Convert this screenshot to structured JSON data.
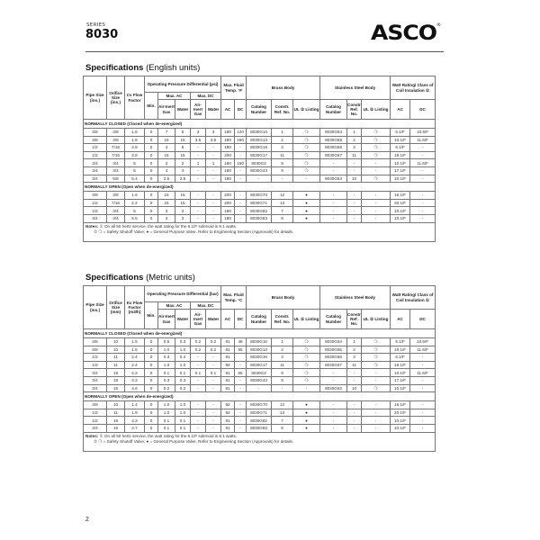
{
  "header": {
    "series_label": "SERIES",
    "model": "8030",
    "logo_text": "ASCO",
    "logo_mark": "®"
  },
  "column_headers": {
    "pipe_size": "Pipe Size (ins.)",
    "orifice_size_english": "Orifice Size (ins.)",
    "orifice_size_metric": "Orifice Size (mm)",
    "cv_flow_factor": "Cv Flow Factor",
    "kv_flow_factor": "Kv Flow Factor (m3/h)",
    "opd_english": "Operating Pressure Differential (psi)",
    "opd_metric": "Operating Pressure Differential (bar)",
    "min": "Min.",
    "max_ac": "Max. AC",
    "max_dc": "Max. DC",
    "air_inert_gas": "Air-Inert Gas",
    "water": "Water",
    "max_fluid_temp_english": "Max. Fluid Temp. °F",
    "max_fluid_temp_metric": "Max. Fluid Temp. °C",
    "ac": "AC",
    "dc": "DC",
    "brass_body": "Brass Body",
    "stainless_steel_body": "Stainless Steel Body",
    "catalog_number": "Catalog Number",
    "constr_ref_no": "Constr. Ref. No.",
    "ul_listing": "UL ② Listing",
    "watt_rating": "Watt Rating/ Class of Coil Insulation ①"
  },
  "tables": [
    {
      "title": "Specifications",
      "units": "(English units)",
      "sections": [
        {
          "label": "NORMALLY CLOSED (Closed when de-energized)",
          "rows": [
            [
              "3/8",
              "3/8",
              "1.8",
              "0",
              "7",
              "5",
              "3",
              "3",
              "180",
              "120",
              "8030G10",
              "1",
              "❍",
              "8030G64",
              "1",
              "❍",
              "6.1/F",
              "10.6/F"
            ],
            [
              "3/8",
              "3/8",
              "1.8",
              "0",
              "15",
              "15",
              "3.5",
              "3.5",
              "180",
              "150",
              "8030G13",
              "2",
              "❍",
              "8030G65",
              "2",
              "❍",
              "10.1/F",
              "11.6/F"
            ],
            [
              "1/2",
              "7/16",
              "2.8",
              "0",
              "4",
              "6",
              "-",
              "-",
              "180",
              "-",
              "8030G16",
              "3",
              "❍",
              "8030G66",
              "3",
              "❍",
              "6.1/F",
              "-"
            ],
            [
              "1/2",
              "7/16",
              "2.8",
              "0",
              "15",
              "15",
              "-",
              "-",
              "200",
              "-",
              "8030G17",
              "11",
              "❍",
              "8030G67",
              "11",
              "❍",
              "16.1/F",
              "-"
            ],
            [
              "3/4",
              "3/4",
              "5",
              "0",
              "2",
              "2",
              "1",
              "1",
              "180",
              "150",
              "8030G3",
              "9",
              "❍",
              "-",
              "-",
              "-",
              "10.1/F",
              "11.6/F"
            ],
            [
              "3/4",
              "3/4",
              "5",
              "0",
              "4",
              "4",
              "-",
              "-",
              "180",
              "-",
              "8030G43",
              "9",
              "❍",
              "-",
              "-",
              "-",
              "17.1/F",
              "-"
            ],
            [
              "3/4",
              "5/8",
              "5.4",
              "0",
              "2.5",
              "2.5",
              "-",
              "-",
              "180",
              "-",
              "-",
              "-",
              "-",
              "8030G63",
              "10",
              "❍",
              "10.1/F",
              "-"
            ]
          ]
        },
        {
          "label": "NORMALLY OPEN (Open when de-energized)",
          "rows": [
            [
              "3/8",
              "3/8",
              "1.6",
              "0",
              "15",
              "15",
              "-",
              "-",
              "200",
              "-",
              "8030G70",
              "12",
              "●",
              "-",
              "-",
              "-",
              "16.1/F",
              "-"
            ],
            [
              "1/2",
              "7/16",
              "2.2",
              "0",
              "15",
              "15",
              "-",
              "-",
              "200",
              "-",
              "8030G71",
              "13",
              "●",
              "-",
              "-",
              "-",
              "20.1/F",
              "-"
            ],
            [
              "1/2",
              "3/4",
              "5",
              "0",
              "2",
              "2",
              "-",
              "-",
              "180",
              "-",
              "8030G82",
              "7",
              "●",
              "-",
              "-",
              "-",
              "10.1/F",
              "-"
            ],
            [
              "3/4",
              "3/4",
              "5.5",
              "0",
              "2",
              "2",
              "-",
              "-",
              "180",
              "-",
              "8030G83",
              "8",
              "●",
              "-",
              "-",
              "-",
              "10.1/F",
              "-"
            ]
          ]
        }
      ]
    },
    {
      "title": "Specifications",
      "units": "(Metric units)",
      "sections": [
        {
          "label": "NORMALLY CLOSED (Closed when de-energized)",
          "rows": [
            [
              "3/8",
              "10",
              "1.5",
              "0",
              "0.5",
              "0.3",
              "0.2",
              "0.2",
              "81",
              "48",
              "8030G10",
              "1",
              "❍",
              "8030G64",
              "1",
              "❍",
              "6.1/F",
              "10.6/F"
            ],
            [
              "3/8",
              "10",
              "1.5",
              "0",
              "1.0",
              "1.0",
              "0.2",
              "0.2",
              "81",
              "65",
              "8030G13",
              "2",
              "❍",
              "8030G65",
              "2",
              "❍",
              "10.1/F",
              "11.6/F"
            ],
            [
              "1/2",
              "11",
              "2.4",
              "0",
              "0.3",
              "0.4",
              "-",
              "-",
              "81",
              "",
              "8030G16",
              "3",
              "❍",
              "8030G66",
              "3",
              "❍",
              "6.1/F",
              "-"
            ],
            [
              "1/2",
              "11",
              "2.4",
              "0",
              "1.0",
              "1.0",
              "-",
              "-",
              "92",
              "-",
              "8030G17",
              "11",
              "❍",
              "8030G67",
              "11",
              "❍",
              "16.1/F",
              "-"
            ],
            [
              "3/4",
              "19",
              "4.3",
              "0",
              "0.1",
              "0.1",
              "0.1",
              "0.1",
              "81",
              "65",
              "8030G3",
              "9",
              "❍",
              "-",
              "-",
              "-",
              "10.1/F",
              "11.6/F"
            ],
            [
              "3/4",
              "19",
              "4.3",
              "0",
              "0.3",
              "0.3",
              "-",
              "-",
              "81",
              "-",
              "8030G43",
              "9",
              "❍",
              "-",
              "-",
              "-",
              "17.1/F",
              "-"
            ],
            [
              "3/4",
              "16",
              "4.6",
              "0",
              "0.2",
              "0.2",
              "-",
              "-",
              "81",
              "-",
              "-",
              "-",
              "-",
              "8030G63",
              "10",
              "❍",
              "10.1/F",
              "-"
            ]
          ]
        },
        {
          "label": "NORMALLY OPEN (Open when de-energized)",
          "rows": [
            [
              "3/8",
              "10",
              "1.4",
              "0",
              "1.0",
              "1.0",
              "-",
              "-",
              "92",
              "-",
              "8030G70",
              "12",
              "●",
              "-",
              "-",
              "-",
              "16.1/F",
              "-"
            ],
            [
              "1/2",
              "11",
              "1.9",
              "0",
              "1.0",
              "1.0",
              "-",
              "-",
              "92",
              "-",
              "8030G71",
              "13",
              "●",
              "-",
              "-",
              "-",
              "20.1/F",
              "-"
            ],
            [
              "1/2",
              "19",
              "4.3",
              "0",
              "0.1",
              "0.1",
              "-",
              "-",
              "81",
              "-",
              "8030G82",
              "7",
              "●",
              "-",
              "-",
              "-",
              "10.1/F",
              "-"
            ],
            [
              "3/4",
              "19",
              "4.7",
              "0",
              "0.1",
              "0.1",
              "-",
              "-",
              "81",
              "-",
              "8030G83",
              "8",
              "●",
              "-",
              "-",
              "-",
              "10.1/F",
              "-"
            ]
          ]
        }
      ]
    }
  ],
  "notes": {
    "label": "Notes:",
    "note1": "① On all 50 hertz service, the watt rating for the 6.1/F solenoid is 8.1 watts.",
    "note2": "② ❍ = Safety Shutoff Valve; ● = General Purpose Valve. Refer to Engineering Section (Approvals) for details."
  },
  "page_number": "2"
}
